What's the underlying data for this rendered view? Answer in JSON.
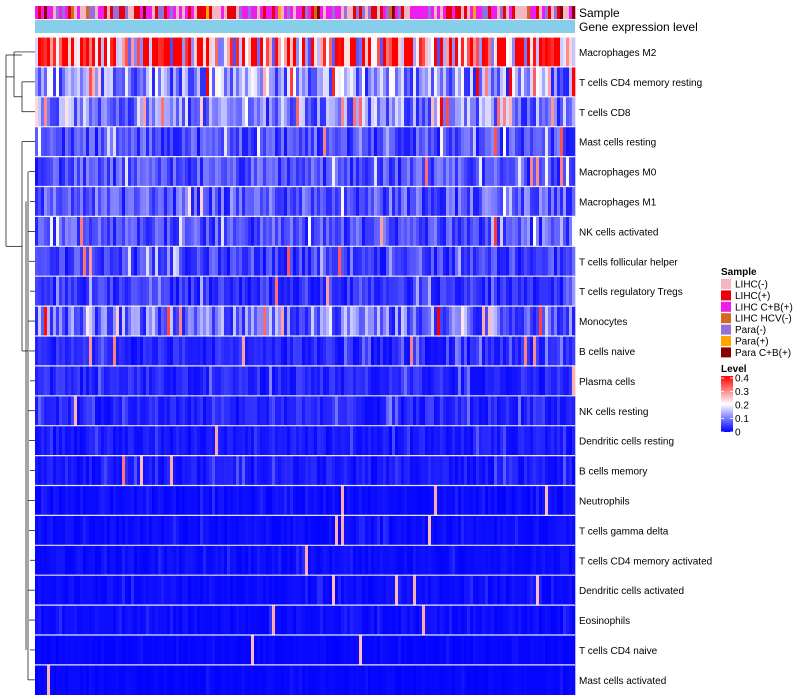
{
  "chart_data": {
    "type": "heatmap",
    "title": "",
    "annotation_tracks": [
      "Sample",
      "Gene expression level"
    ],
    "rows": [
      "Macrophages M2",
      "T cells CD4 memory resting",
      "T cells CD8",
      "Mast cells resting",
      "Macrophages M0",
      "Macrophages M1",
      "NK cells activated",
      "T cells follicular helper",
      "T cells regulatory  Tregs",
      "Monocytes",
      "B cells naive",
      "Plasma cells",
      "NK cells resting",
      "Dendritic cells resting",
      "B cells memory",
      "Neutrophils",
      "T cells gamma delta",
      "T cells CD4 memory activated",
      "Dendritic cells activated",
      "Eosinophils",
      "T cells CD4 naive",
      "Mast cells activated"
    ],
    "row_mean_level": [
      0.28,
      0.12,
      0.1,
      0.06,
      0.06,
      0.07,
      0.06,
      0.05,
      0.04,
      0.09,
      0.03,
      0.03,
      0.03,
      0.02,
      0.02,
      0.01,
      0.01,
      0.01,
      0.01,
      0.01,
      0.005,
      0.005
    ],
    "legend_sample": {
      "title": "Sample",
      "entries": [
        {
          "label": "LIHC(-)",
          "color": "#f4b6c2"
        },
        {
          "label": "LIHC(+)",
          "color": "#e8000b"
        },
        {
          "label": "LIHC C+B(+)",
          "color": "#ee1dee"
        },
        {
          "label": "LIHC HCV(-)",
          "color": "#d2691e"
        },
        {
          "label": "Para(-)",
          "color": "#9370db"
        },
        {
          "label": "Para(+)",
          "color": "#ffa500"
        },
        {
          "label": "Para C+B(+)",
          "color": "#8b0000"
        }
      ]
    },
    "legend_level": {
      "title": "Level",
      "ticks": [
        "0.4",
        "0.3",
        "0.2",
        "0.1",
        "0"
      ],
      "range": [
        0,
        0.4
      ],
      "colors": [
        "#0000ff",
        "#ffffff",
        "#ff0000"
      ]
    },
    "expression_track_color": "#87ceeb"
  }
}
